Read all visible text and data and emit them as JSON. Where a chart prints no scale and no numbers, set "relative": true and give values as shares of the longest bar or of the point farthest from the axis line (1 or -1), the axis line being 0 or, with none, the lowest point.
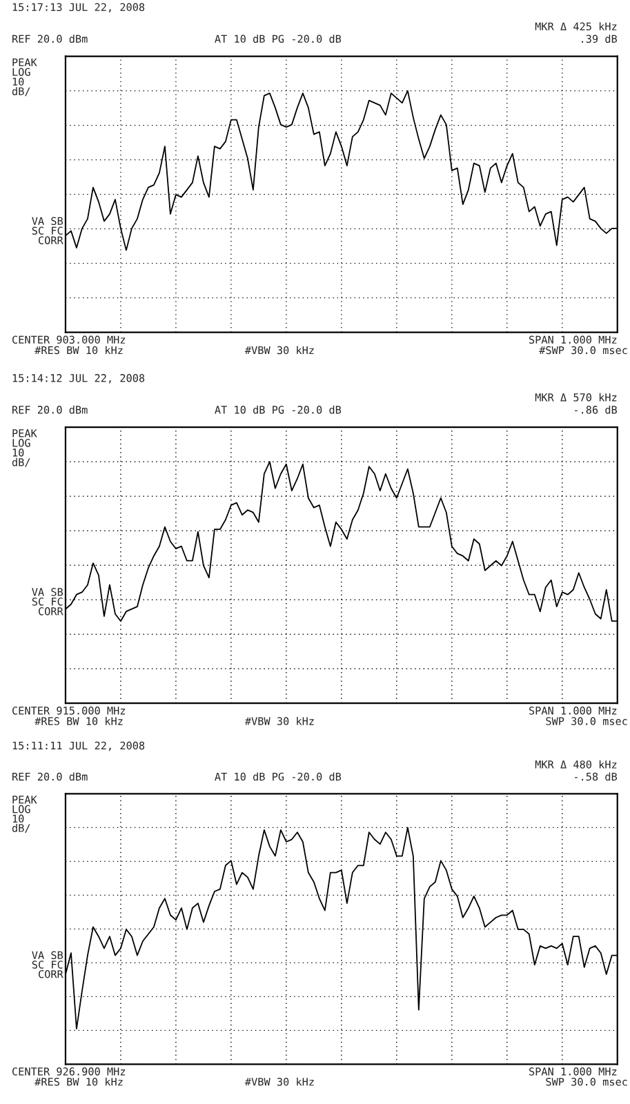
{
  "chart_data": [
    {
      "type": "line",
      "title": "15:17:13 JUL 22, 2008",
      "relative": true,
      "grid": true,
      "annotations": [
        "MKR Δ 425 kHz",
        ".39 dB",
        "REF 20.0 dBm",
        "AT 10 dB PG -20.0 dB",
        "PEAK",
        "LOG",
        "10",
        "dB/",
        "VA SB",
        "SC FC",
        "CORR",
        "CENTER 903.000 MHz",
        "#RES BW 10 kHz",
        "#VBW 30 kHz",
        "SPAN 1.000 MHz",
        "#SWP 30.0 msec"
      ],
      "categories": [
        null,
        null,
        null,
        null,
        null,
        null,
        null,
        null,
        null,
        null,
        null,
        null,
        null,
        null,
        null,
        null,
        null,
        null,
        null,
        null,
        null,
        null,
        null,
        null,
        null,
        null,
        null,
        null,
        null,
        null,
        null,
        null,
        null,
        null,
        null,
        null,
        null,
        null,
        null,
        null,
        null,
        null,
        null,
        null,
        null,
        null,
        null,
        null,
        null,
        null,
        null,
        null,
        null,
        null,
        null,
        null,
        null,
        null,
        null,
        null,
        null,
        null,
        null,
        null,
        null,
        null,
        null,
        null,
        null,
        null,
        null,
        null,
        null,
        null,
        null,
        null,
        null,
        null,
        null,
        null,
        null,
        null,
        null,
        null,
        null,
        null,
        null,
        null,
        null,
        null,
        null,
        null,
        null,
        null,
        null,
        null,
        null,
        null,
        null,
        null,
        null
      ],
      "series": [
        {
          "color": "#000000",
          "line_style": "solid",
          "values": [
            0.4,
            0.42,
            0.35,
            0.43,
            0.47,
            0.6,
            0.54,
            0.46,
            0.49,
            0.55,
            0.43,
            0.34,
            0.43,
            0.47,
            0.55,
            0.6,
            0.61,
            0.66,
            0.77,
            0.49,
            0.57,
            0.56,
            0.59,
            0.62,
            0.73,
            0.62,
            0.56,
            0.77,
            0.76,
            0.79,
            0.88,
            0.88,
            0.8,
            0.72,
            0.59,
            0.85,
            0.98,
            0.99,
            0.93,
            0.86,
            0.85,
            0.86,
            0.93,
            0.99,
            0.93,
            0.82,
            0.83,
            0.69,
            0.74,
            0.83,
            0.77,
            0.69,
            0.81,
            0.83,
            0.88,
            0.96,
            0.95,
            0.94,
            0.9,
            0.99,
            0.97,
            0.95,
            1.0,
            0.89,
            0.8,
            0.72,
            0.77,
            0.84,
            0.9,
            0.86,
            0.67,
            0.68,
            0.53,
            0.59,
            0.7,
            0.69,
            0.58,
            0.68,
            0.7,
            0.62,
            0.69,
            0.74,
            0.62,
            0.6,
            0.5,
            0.52,
            0.44,
            0.49,
            0.5,
            0.36,
            0.55,
            0.56,
            0.54,
            0.57,
            0.6,
            0.47,
            0.46,
            0.43,
            0.41,
            0.43,
            0.43
          ]
        }
      ]
    },
    {
      "type": "line",
      "title": "15:14:12 JUL 22, 2008",
      "relative": true,
      "grid": true,
      "annotations": [
        "MKR Δ 570 kHz",
        "-.86 dB",
        "REF 20.0 dBm",
        "AT 10 dB PG -20.0 dB",
        "PEAK",
        "LOG",
        "10",
        "dB/",
        "VA SB",
        "SC FC",
        "CORR",
        "CENTER 915.000 MHz",
        "#RES BW 10 kHz",
        "#VBW 30 kHz",
        "SPAN 1.000 MHz",
        "SWP 30.0 msec"
      ],
      "categories": [
        null,
        null,
        null,
        null,
        null,
        null,
        null,
        null,
        null,
        null,
        null,
        null,
        null,
        null,
        null,
        null,
        null,
        null,
        null,
        null,
        null,
        null,
        null,
        null,
        null,
        null,
        null,
        null,
        null,
        null,
        null,
        null,
        null,
        null,
        null,
        null,
        null,
        null,
        null,
        null,
        null,
        null,
        null,
        null,
        null,
        null,
        null,
        null,
        null,
        null,
        null,
        null,
        null,
        null,
        null,
        null,
        null,
        null,
        null,
        null,
        null,
        null,
        null,
        null,
        null,
        null,
        null,
        null,
        null,
        null,
        null,
        null,
        null,
        null,
        null,
        null,
        null,
        null,
        null,
        null,
        null,
        null,
        null,
        null,
        null,
        null,
        null,
        null,
        null,
        null,
        null,
        null,
        null,
        null,
        null,
        null,
        null,
        null,
        null,
        null,
        null
      ],
      "series": [
        {
          "color": "#000000",
          "line_style": "solid",
          "values": [
            0.39,
            0.41,
            0.45,
            0.46,
            0.49,
            0.58,
            0.53,
            0.36,
            0.49,
            0.37,
            0.34,
            0.38,
            0.39,
            0.4,
            0.49,
            0.56,
            0.61,
            0.65,
            0.73,
            0.67,
            0.64,
            0.65,
            0.59,
            0.59,
            0.71,
            0.57,
            0.52,
            0.72,
            0.72,
            0.76,
            0.82,
            0.83,
            0.78,
            0.8,
            0.79,
            0.75,
            0.95,
            1.0,
            0.89,
            0.95,
            0.99,
            0.88,
            0.93,
            0.99,
            0.85,
            0.81,
            0.82,
            0.73,
            0.65,
            0.75,
            0.72,
            0.68,
            0.76,
            0.8,
            0.87,
            0.98,
            0.95,
            0.88,
            0.95,
            0.89,
            0.85,
            0.91,
            0.97,
            0.87,
            0.73,
            0.73,
            0.73,
            0.79,
            0.85,
            0.79,
            0.65,
            0.62,
            0.61,
            0.59,
            0.68,
            0.66,
            0.55,
            0.57,
            0.59,
            0.57,
            0.61,
            0.67,
            0.59,
            0.51,
            0.45,
            0.45,
            0.38,
            0.48,
            0.51,
            0.4,
            0.46,
            0.45,
            0.47,
            0.54,
            0.48,
            0.43,
            0.37,
            0.35,
            0.47,
            0.34,
            0.34
          ]
        }
      ]
    },
    {
      "type": "line",
      "title": "15:11:11 JUL 22, 2008",
      "relative": true,
      "grid": true,
      "annotations": [
        "MKR Δ 480 kHz",
        "-.58 dB",
        "REF 20.0 dBm",
        "AT 10 dB PG -20.0 dB",
        "PEAK",
        "LOG",
        "10",
        "dB/",
        "VA SB",
        "SC FC",
        "CORR",
        "CENTER 926.900 MHz",
        "#RES BW 10 kHz",
        "#VBW 30 kHz",
        "SPAN 1.000 MHz",
        "SWP 30.0 msec"
      ],
      "categories": [
        null,
        null,
        null,
        null,
        null,
        null,
        null,
        null,
        null,
        null,
        null,
        null,
        null,
        null,
        null,
        null,
        null,
        null,
        null,
        null,
        null,
        null,
        null,
        null,
        null,
        null,
        null,
        null,
        null,
        null,
        null,
        null,
        null,
        null,
        null,
        null,
        null,
        null,
        null,
        null,
        null,
        null,
        null,
        null,
        null,
        null,
        null,
        null,
        null,
        null,
        null,
        null,
        null,
        null,
        null,
        null,
        null,
        null,
        null,
        null,
        null,
        null,
        null,
        null,
        null,
        null,
        null,
        null,
        null,
        null,
        null,
        null,
        null,
        null,
        null,
        null,
        null,
        null,
        null,
        null,
        null,
        null,
        null,
        null,
        null,
        null,
        null,
        null,
        null,
        null,
        null,
        null,
        null,
        null,
        null,
        null,
        null,
        null,
        null,
        null,
        null
      ],
      "series": [
        {
          "color": "#000000",
          "line_style": "solid",
          "values": [
            0.38,
            0.47,
            0.15,
            0.31,
            0.46,
            0.58,
            0.54,
            0.49,
            0.54,
            0.46,
            0.49,
            0.57,
            0.54,
            0.46,
            0.52,
            0.55,
            0.58,
            0.66,
            0.7,
            0.63,
            0.61,
            0.66,
            0.57,
            0.66,
            0.68,
            0.6,
            0.67,
            0.73,
            0.74,
            0.84,
            0.86,
            0.76,
            0.81,
            0.79,
            0.74,
            0.88,
            0.99,
            0.92,
            0.88,
            0.99,
            0.94,
            0.95,
            0.98,
            0.94,
            0.81,
            0.77,
            0.7,
            0.65,
            0.81,
            0.81,
            0.82,
            0.68,
            0.81,
            0.84,
            0.84,
            0.98,
            0.95,
            0.93,
            0.98,
            0.95,
            0.88,
            0.88,
            1.0,
            0.88,
            0.23,
            0.7,
            0.75,
            0.77,
            0.86,
            0.82,
            0.74,
            0.71,
            0.62,
            0.66,
            0.71,
            0.66,
            0.58,
            0.6,
            0.62,
            0.63,
            0.63,
            0.65,
            0.57,
            0.57,
            0.55,
            0.42,
            0.5,
            0.49,
            0.5,
            0.49,
            0.51,
            0.42,
            0.54,
            0.54,
            0.41,
            0.49,
            0.5,
            0.47,
            0.38,
            0.46,
            0.46
          ]
        }
      ]
    }
  ]
}
